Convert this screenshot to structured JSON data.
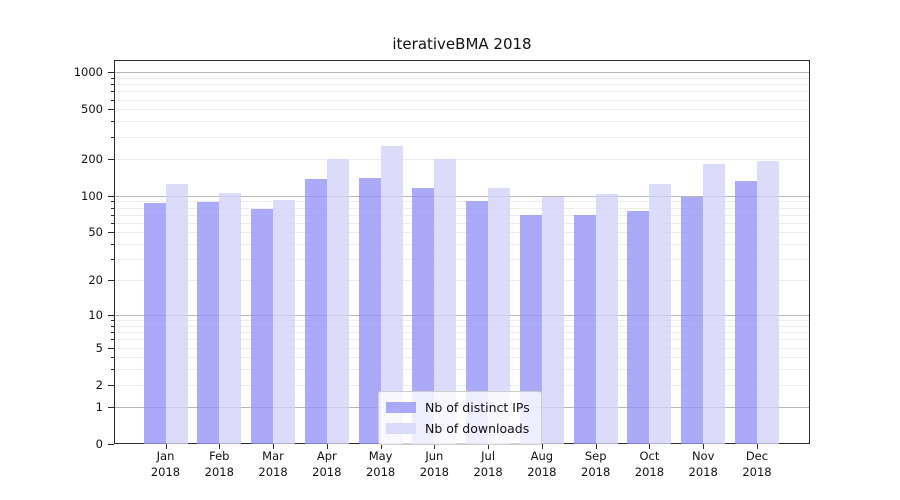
{
  "chart_data": {
    "type": "bar",
    "title": "iterativeBMA 2018",
    "categories": [
      "Jan",
      "Feb",
      "Mar",
      "Apr",
      "May",
      "Jun",
      "Jul",
      "Aug",
      "Sep",
      "Oct",
      "Nov",
      "Dec"
    ],
    "year_label": "2018",
    "series": [
      {
        "name": "Nb of distinct IPs",
        "values": [
          87,
          88,
          78,
          136,
          140,
          115,
          90,
          70,
          70,
          75,
          97,
          132
        ],
        "fill": "rgba(149,149,247,0.8)",
        "legend_color": "#aaaaf8"
      },
      {
        "name": "Nb of downloads",
        "values": [
          125,
          106,
          92,
          200,
          252,
          200,
          115,
          97,
          104,
          125,
          181,
          190
        ],
        "fill": "rgba(211,211,249,0.8)",
        "legend_color": "#dbdbfa"
      }
    ],
    "yscale": "symlog (y proportional to log10(1+v))",
    "y_ticks": [
      0,
      1,
      2,
      5,
      10,
      20,
      50,
      100,
      200,
      500,
      1000
    ],
    "ylim": [
      0,
      1256
    ],
    "xlabel": "",
    "ylabel": "",
    "grid": true,
    "legend_position": "lower-center",
    "colors": {
      "major_gridline": "#b8b8b8",
      "minor_gridline": "#ededed",
      "spine": "#2b2b2b",
      "background": "#ffffff"
    }
  }
}
